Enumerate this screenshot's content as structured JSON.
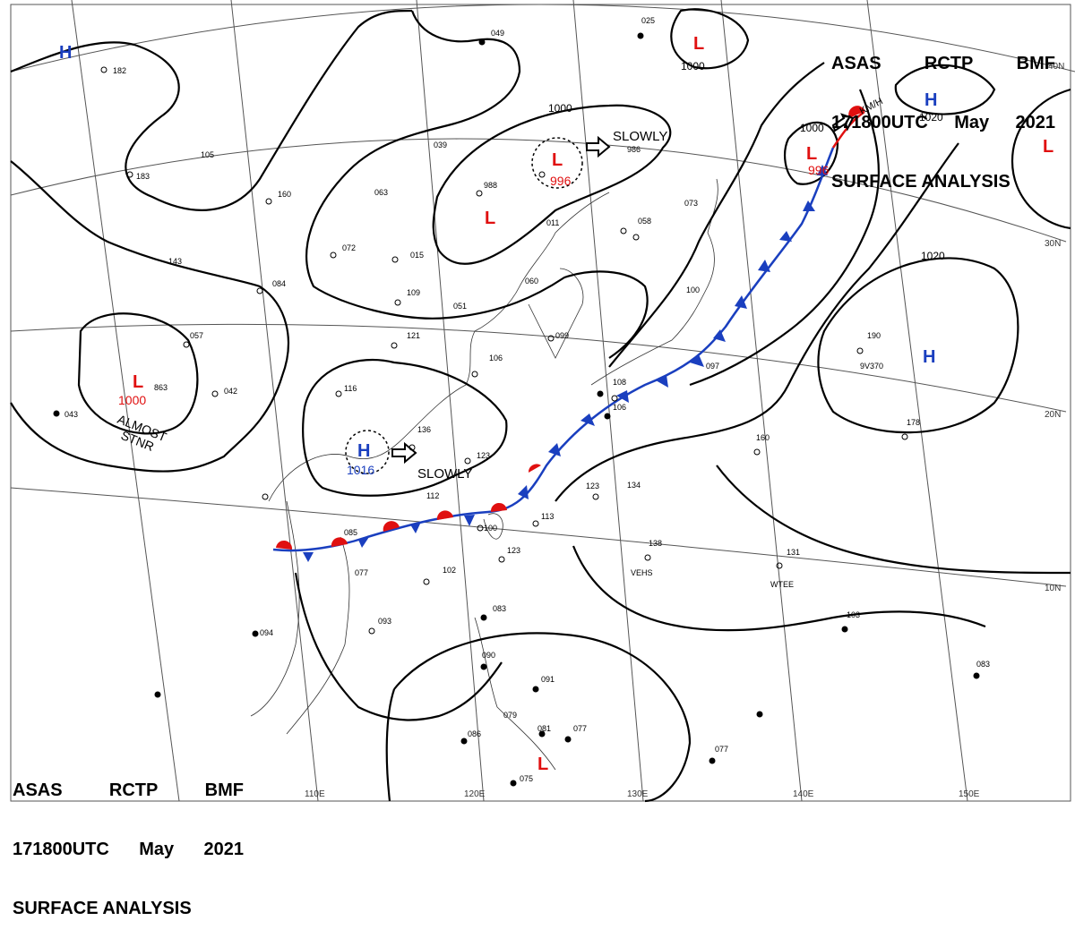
{
  "header": {
    "agency_parts": [
      "ASAS",
      "RCTP",
      "BMF"
    ],
    "time_parts": [
      "171800UTC",
      "May",
      "2021"
    ],
    "title": "SURFACE ANALYSIS"
  },
  "latitude_labels": [
    "40N",
    "30N",
    "20N",
    "10N"
  ],
  "longitude_labels": [
    "110E",
    "120E",
    "130E",
    "140E",
    "150E"
  ],
  "isobar_labels": [
    "1000",
    "1000",
    "1000",
    "1020",
    "1020"
  ],
  "pressure_centers": [
    {
      "type": "H",
      "value": "",
      "color": "#1a3fbf"
    },
    {
      "type": "L",
      "value": "",
      "color": "#e01010"
    },
    {
      "type": "H",
      "value": "1020",
      "color": "#1a3fbf"
    },
    {
      "type": "L",
      "value": "",
      "color": "#e01010"
    },
    {
      "type": "L",
      "value": "996",
      "color": "#e01010"
    },
    {
      "type": "L",
      "value": "",
      "color": "#e01010"
    },
    {
      "type": "L",
      "value": "996",
      "color": "#e01010"
    },
    {
      "type": "L",
      "value": "1000",
      "color": "#e01010"
    },
    {
      "type": "H",
      "value": "1016",
      "color": "#1a3fbf"
    },
    {
      "type": "H",
      "value": "",
      "color": "#1a3fbf"
    },
    {
      "type": "L",
      "value": "",
      "color": "#e01010"
    }
  ],
  "annotations": [
    {
      "text": "SLOWLY"
    },
    {
      "text": "SLOWLY"
    },
    {
      "text": "ALMOST"
    },
    {
      "text": "STNR"
    },
    {
      "text": "KM/H"
    }
  ],
  "station_labels": [
    "VEHS",
    "WTEE",
    "9V370",
    "182",
    "105",
    "049",
    "039",
    "063",
    "986",
    "988",
    "015",
    "109",
    "084",
    "072",
    "160",
    "183",
    "143",
    "057",
    "863",
    "043",
    "042",
    "116",
    "121",
    "106",
    "136",
    "112",
    "113",
    "123",
    "100",
    "102",
    "093",
    "094",
    "077",
    "083",
    "138",
    "131",
    "103",
    "091",
    "077",
    "075",
    "086",
    "079",
    "058",
    "073",
    "099",
    "190",
    "178",
    "160",
    "134",
    "123",
    "083",
    "077",
    "097",
    "108",
    "100",
    "106",
    "085",
    "060",
    "051",
    "011",
    "025",
    "081",
    "123",
    "090"
  ],
  "colors": {
    "warm_front": "#e01010",
    "cold_front": "#1a3fbf",
    "isobar": "#000000",
    "coast": "#333333",
    "grid": "#555555"
  }
}
